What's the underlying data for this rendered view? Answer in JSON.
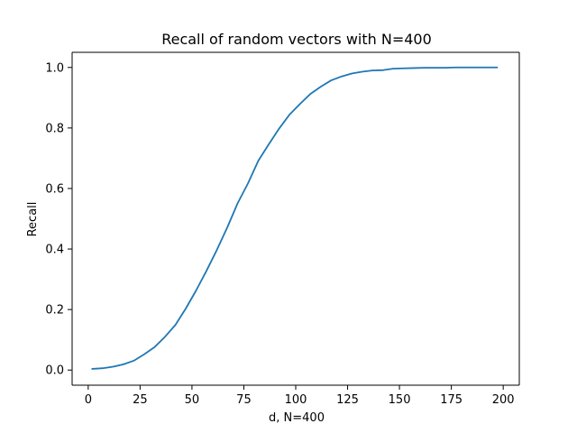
{
  "chart_data": {
    "type": "line",
    "title": "Recall of random vectors with N=400",
    "xlabel": "d, N=400",
    "ylabel": "Recall",
    "xlim": [
      -7.75,
      207.75
    ],
    "ylim": [
      -0.05,
      1.05
    ],
    "xticks": [
      0,
      25,
      50,
      75,
      100,
      125,
      150,
      175,
      200
    ],
    "yticks": [
      0.0,
      0.2,
      0.4,
      0.6,
      0.8,
      1.0
    ],
    "xtick_labels": [
      "0",
      "25",
      "50",
      "75",
      "100",
      "125",
      "150",
      "175",
      "200"
    ],
    "ytick_labels": [
      "0.0",
      "0.2",
      "0.4",
      "0.6",
      "0.8",
      "1.0"
    ],
    "grid": false,
    "series": [
      {
        "color": "#1f77b4",
        "x": [
          2,
          7,
          12,
          17,
          22,
          27,
          32,
          37,
          42,
          47,
          52,
          57,
          62,
          67,
          72,
          77,
          82,
          87,
          92,
          97,
          102,
          107,
          112,
          117,
          122,
          127,
          132,
          137,
          142,
          147,
          152,
          157,
          162,
          167,
          172,
          177,
          182,
          187,
          192,
          197
        ],
        "y": [
          0.004,
          0.006,
          0.011,
          0.019,
          0.031,
          0.052,
          0.076,
          0.11,
          0.149,
          0.203,
          0.263,
          0.328,
          0.397,
          0.471,
          0.551,
          0.617,
          0.692,
          0.746,
          0.798,
          0.844,
          0.879,
          0.912,
          0.936,
          0.957,
          0.97,
          0.98,
          0.986,
          0.99,
          0.991,
          0.996,
          0.997,
          0.998,
          0.999,
          0.999,
          0.999,
          1.0,
          1.0,
          1.0,
          1.0,
          1.0
        ]
      }
    ]
  }
}
